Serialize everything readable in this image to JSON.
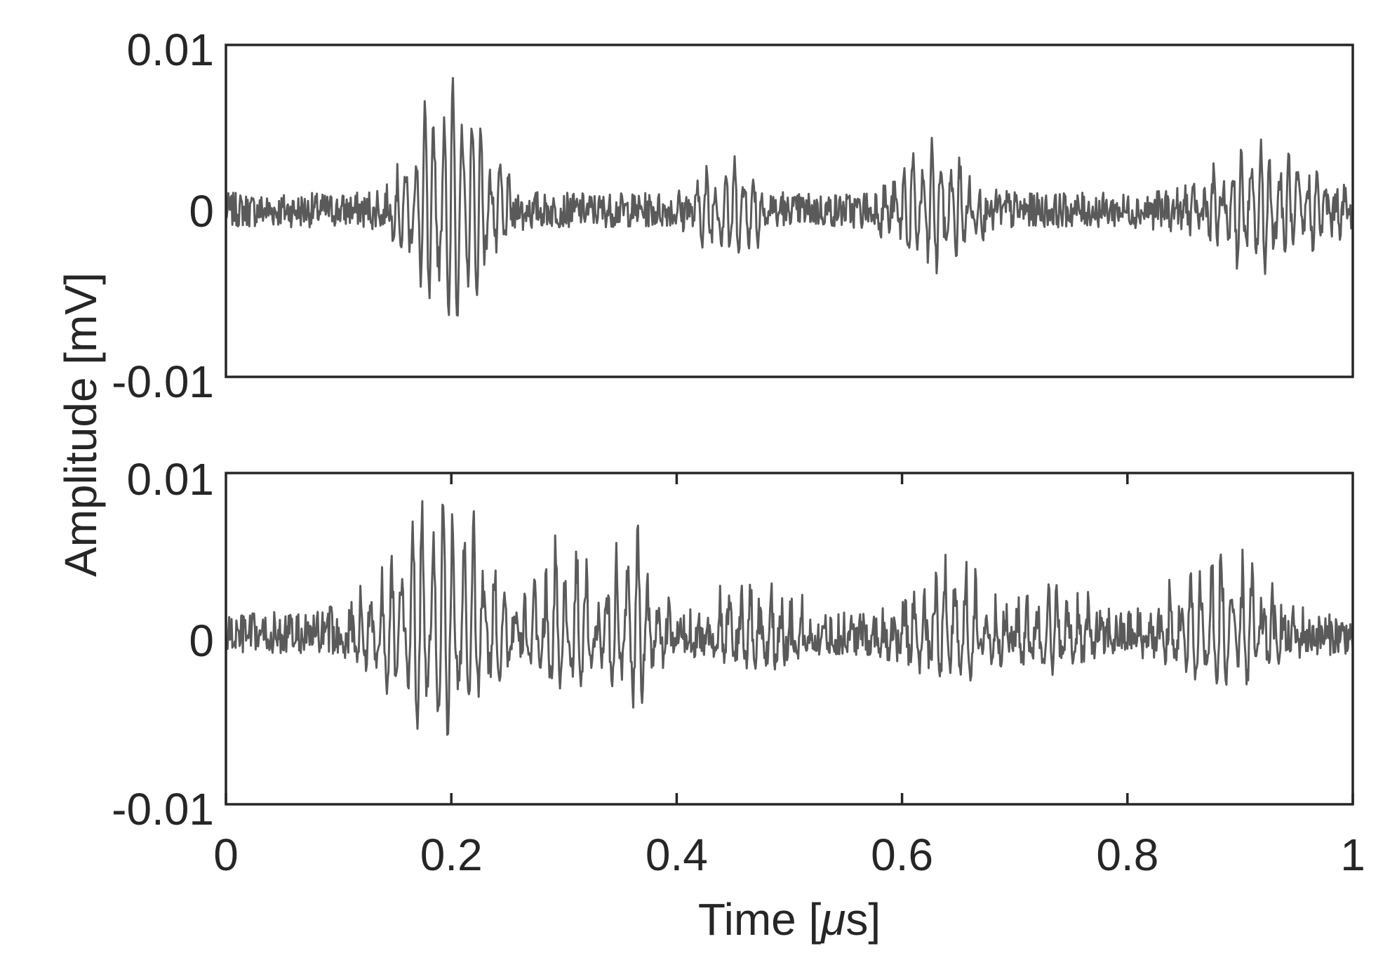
{
  "figure": {
    "ylabel": "Amplitude [mV]",
    "xlabel_prefix": "Time [",
    "xlabel_symbol": "μ",
    "xlabel_suffix": "s]",
    "line_color": "#5a5a5a",
    "axis_color": "#262626"
  },
  "chart_data": [
    {
      "type": "line",
      "name": "top",
      "xlim": [
        0,
        1
      ],
      "ylim": [
        -0.01,
        0.01
      ],
      "yticks": [
        0.01,
        0,
        -0.01
      ],
      "ytick_labels": [
        "0.01",
        "0",
        "-0.01"
      ],
      "xticks": [],
      "xtick_labels": [],
      "grid": false,
      "signal": {
        "noise_amplitude": 0.0011,
        "carrier_cycles": 120,
        "points": 1400,
        "bursts": [
          {
            "center": 0.2,
            "width": 0.04,
            "amplitude": 0.0072
          },
          {
            "center": 0.45,
            "width": 0.035,
            "amplitude": 0.0025
          },
          {
            "center": 0.63,
            "width": 0.04,
            "amplitude": 0.0034
          },
          {
            "center": 0.92,
            "width": 0.06,
            "amplitude": 0.0031
          }
        ],
        "peak_max": 0.008,
        "peak_min": -0.0063
      }
    },
    {
      "type": "line",
      "name": "bottom",
      "xlim": [
        0,
        1
      ],
      "ylim": [
        -0.01,
        0.01
      ],
      "yticks": [
        0.01,
        0,
        -0.01
      ],
      "ytick_labels": [
        "0.01",
        "0",
        "-0.01"
      ],
      "xticks": [
        0,
        0.2,
        0.4,
        0.6,
        0.8,
        1
      ],
      "xtick_labels": [
        "0",
        "0.2",
        "0.4",
        "0.6",
        "0.8",
        "1"
      ],
      "grid": false,
      "signal": {
        "noise_amplitude": 0.0012,
        "carrier_cycles": 110,
        "points": 1400,
        "bursts": [
          {
            "center": 0.19,
            "width": 0.055,
            "amplitude": 0.0062
          },
          {
            "center": 0.3,
            "width": 0.03,
            "amplitude": 0.0038
          },
          {
            "center": 0.36,
            "width": 0.025,
            "amplitude": 0.0045
          },
          {
            "center": 0.47,
            "width": 0.04,
            "amplitude": 0.0022
          },
          {
            "center": 0.64,
            "width": 0.045,
            "amplitude": 0.0028
          },
          {
            "center": 0.73,
            "width": 0.04,
            "amplitude": 0.0022
          },
          {
            "center": 0.88,
            "width": 0.05,
            "amplitude": 0.0035
          }
        ],
        "peak_max": 0.0083,
        "peak_min": -0.0058
      }
    }
  ]
}
